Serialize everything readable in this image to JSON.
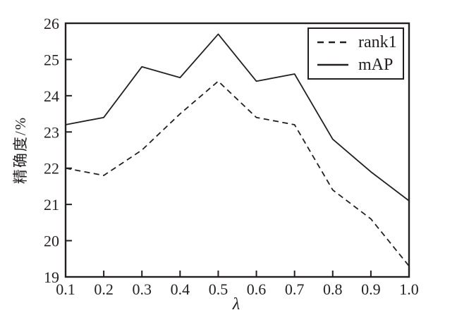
{
  "figure": {
    "background": "#ffffff",
    "line_color": "#231f20",
    "text_color": "#231f20"
  },
  "chart_data": {
    "type": "line",
    "title": "",
    "xlabel": "λ",
    "ylabel": "精确度/%",
    "xlim": [
      0.1,
      1.0
    ],
    "ylim": [
      19,
      26
    ],
    "grid": false,
    "legend_position": "top-right-inside",
    "xticks": [
      "0.1",
      "0.2",
      "0.3",
      "0.4",
      "0.5",
      "0.6",
      "0.7",
      "0.8",
      "0.9",
      "1.0"
    ],
    "yticks": [
      "19",
      "20",
      "21",
      "22",
      "23",
      "24",
      "25",
      "26"
    ],
    "x": [
      0.1,
      0.2,
      0.3,
      0.4,
      0.5,
      0.6,
      0.7,
      0.8,
      0.9,
      1.0
    ],
    "series": [
      {
        "name": "rank1",
        "style": "dashed",
        "values": [
          22.0,
          21.8,
          22.5,
          23.5,
          24.4,
          23.4,
          23.2,
          21.4,
          20.6,
          19.3
        ]
      },
      {
        "name": "mAP",
        "style": "solid",
        "values": [
          23.2,
          23.4,
          24.8,
          24.5,
          25.7,
          24.4,
          24.6,
          22.8,
          21.9,
          21.1
        ]
      }
    ]
  }
}
